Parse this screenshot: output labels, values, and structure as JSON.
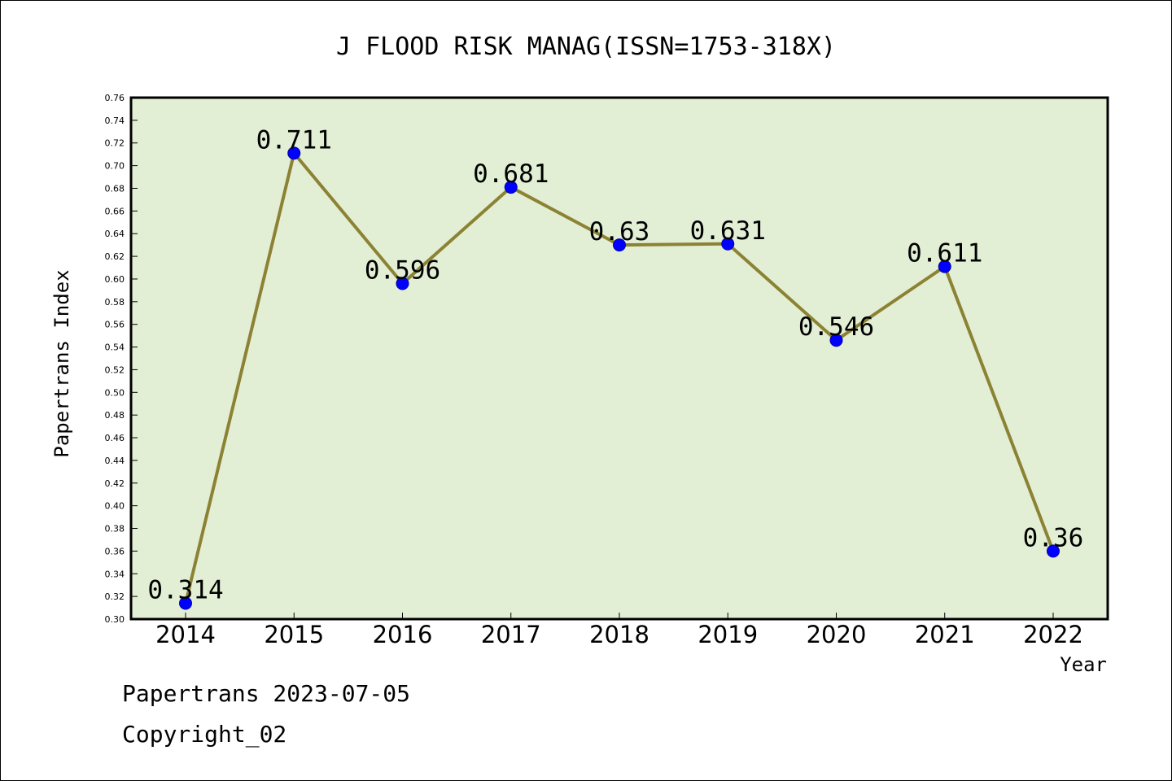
{
  "chart_data": {
    "type": "line",
    "title": "J FLOOD RISK MANAG(ISSN=1753-318X)",
    "xlabel": "Year",
    "ylabel": "Papertrans Index",
    "categories": [
      "2014",
      "2015",
      "2016",
      "2017",
      "2018",
      "2019",
      "2020",
      "2021",
      "2022"
    ],
    "values": [
      0.314,
      0.711,
      0.596,
      0.681,
      0.63,
      0.631,
      0.546,
      0.611,
      0.36
    ],
    "value_labels": [
      "0.314",
      "0.711",
      "0.596",
      "0.681",
      "0.63",
      "0.631",
      "0.546",
      "0.611",
      "0.36"
    ],
    "ylim": [
      0.3,
      0.76
    ],
    "y_ticks": [
      "0.30",
      "0.32",
      "0.34",
      "0.36",
      "0.38",
      "0.40",
      "0.42",
      "0.44",
      "0.46",
      "0.48",
      "0.50",
      "0.52",
      "0.54",
      "0.56",
      "0.58",
      "0.60",
      "0.62",
      "0.64",
      "0.66",
      "0.68",
      "0.70",
      "0.72",
      "0.74",
      "0.76"
    ],
    "grid": false,
    "colors": {
      "plot_background": "#e2efd5",
      "line": "#8c8234",
      "marker": "#0000ff"
    }
  },
  "footer": {
    "line1": "Papertrans 2023-07-05",
    "line2": "Copyright_02"
  }
}
